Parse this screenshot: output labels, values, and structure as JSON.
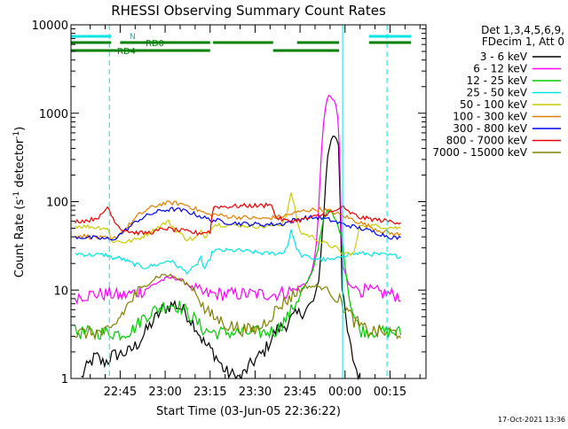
{
  "chart_data": {
    "type": "line",
    "title": "RHESSI Observing Summary Count Rates",
    "xlabel": "Start Time (03-Jun-05 22:36:22)",
    "ylabel_main": "Count Rate (s",
    "ylabel_exp1": "-1",
    "ylabel_mid": " detector",
    "ylabel_exp2": "-1",
    "ylabel_end": ")",
    "y_scale": "log",
    "ylim": [
      1,
      10000
    ],
    "xlim_minutes": [
      -16.4,
      102.0
    ],
    "x_reference": "22:36:22",
    "yticks": [
      {
        "v": 1,
        "label": "1"
      },
      {
        "v": 10,
        "label": "10"
      },
      {
        "v": 100,
        "label": "100"
      },
      {
        "v": 1000,
        "label": "1000"
      },
      {
        "v": 10000,
        "label": "10000"
      }
    ],
    "xticks": [
      {
        "m": 0,
        "label": "22:45"
      },
      {
        "m": 15,
        "label": "23:00"
      },
      {
        "m": 30,
        "label": "23:15"
      },
      {
        "m": 45,
        "label": "23:30"
      },
      {
        "m": 60,
        "label": "23:45"
      },
      {
        "m": 75,
        "label": "00:00"
      },
      {
        "m": 90,
        "label": "00:15"
      }
    ],
    "legend_header": [
      "Det 1,3,4,5,6,9,",
      "FDecim 1, Att 0"
    ],
    "legend_placement": "right",
    "series": [
      {
        "name": "3 - 6 keV",
        "color": "#000000",
        "points": [
          [
            -13,
            1
          ],
          [
            -12,
            1.2
          ],
          [
            -10,
            1.5
          ],
          [
            -8,
            1.8
          ],
          [
            -6,
            1.5
          ],
          [
            -4,
            1.6
          ],
          [
            -3,
            1.8
          ],
          [
            3,
            2
          ],
          [
            6,
            2.5
          ],
          [
            10,
            4
          ],
          [
            14,
            6
          ],
          [
            18,
            7
          ],
          [
            21,
            6
          ],
          [
            25,
            4
          ],
          [
            28,
            2.5
          ],
          [
            31,
            2
          ],
          [
            35,
            1.2
          ],
          [
            40,
            1
          ],
          [
            44,
            1.5
          ],
          [
            48,
            2
          ],
          [
            52,
            3.5
          ],
          [
            55,
            4
          ],
          [
            58,
            5
          ],
          [
            62,
            6
          ],
          [
            64,
            7
          ],
          [
            66,
            10
          ],
          [
            68,
            80
          ],
          [
            69,
            300
          ],
          [
            70,
            450
          ],
          [
            71,
            560
          ],
          [
            72,
            550
          ],
          [
            73,
            420
          ],
          [
            74,
            10
          ],
          [
            76,
            3
          ],
          [
            78,
            1.5
          ],
          [
            80,
            1
          ]
        ]
      },
      {
        "name": "6 - 12 keV",
        "color": "#ff00ff",
        "points": [
          [
            -15,
            8.5
          ],
          [
            -8,
            9
          ],
          [
            -4,
            9
          ],
          [
            -3,
            9
          ],
          [
            0,
            8.5
          ],
          [
            3,
            9
          ],
          [
            8,
            10
          ],
          [
            14,
            13
          ],
          [
            18,
            14
          ],
          [
            22,
            12
          ],
          [
            25,
            10
          ],
          [
            28,
            9
          ],
          [
            31,
            9
          ],
          [
            35,
            9
          ],
          [
            40,
            9
          ],
          [
            45,
            9
          ],
          [
            52,
            9
          ],
          [
            58,
            10
          ],
          [
            62,
            12
          ],
          [
            64,
            16
          ],
          [
            65,
            25
          ],
          [
            66,
            60
          ],
          [
            67,
            300
          ],
          [
            68,
            1000
          ],
          [
            69,
            1400
          ],
          [
            70,
            1600
          ],
          [
            71,
            1400
          ],
          [
            72,
            1200
          ],
          [
            73,
            700
          ],
          [
            74,
            20
          ],
          [
            76,
            12
          ],
          [
            80,
            10
          ],
          [
            90,
            9
          ],
          [
            94,
            8.5
          ]
        ]
      },
      {
        "name": "12 - 25 keV",
        "color": "#00cc00",
        "points": [
          [
            -15,
            3.3
          ],
          [
            -8,
            3.3
          ],
          [
            -4,
            3.3
          ],
          [
            -3,
            3.3
          ],
          [
            0,
            3.2
          ],
          [
            4,
            3.5
          ],
          [
            8,
            5
          ],
          [
            12,
            6
          ],
          [
            16,
            7
          ],
          [
            20,
            6.5
          ],
          [
            24,
            5
          ],
          [
            28,
            3.5
          ],
          [
            32,
            3.3
          ],
          [
            36,
            3.3
          ],
          [
            40,
            3.3
          ],
          [
            44,
            3.3
          ],
          [
            48,
            3.3
          ],
          [
            52,
            3.5
          ],
          [
            56,
            5
          ],
          [
            60,
            9
          ],
          [
            64,
            15
          ],
          [
            66,
            30
          ],
          [
            68,
            70
          ],
          [
            70,
            80
          ],
          [
            72,
            60
          ],
          [
            74,
            40
          ],
          [
            76,
            10
          ],
          [
            78,
            5
          ],
          [
            80,
            3.5
          ],
          [
            94,
            3.3
          ]
        ]
      },
      {
        "name": "25 - 50 keV",
        "color": "#00e5e5",
        "points": [
          [
            -15,
            26
          ],
          [
            -10,
            25
          ],
          [
            -4,
            25
          ],
          [
            -3,
            23
          ],
          [
            0,
            23
          ],
          [
            4,
            20
          ],
          [
            8,
            18
          ],
          [
            14,
            20
          ],
          [
            16,
            22
          ],
          [
            18,
            20
          ],
          [
            22,
            16
          ],
          [
            25,
            18
          ],
          [
            27,
            24
          ],
          [
            28,
            16
          ],
          [
            31,
            28
          ],
          [
            40,
            28
          ],
          [
            48,
            26
          ],
          [
            54,
            26
          ],
          [
            56,
            32
          ],
          [
            57,
            50
          ],
          [
            58,
            35
          ],
          [
            60,
            25
          ],
          [
            64,
            23
          ],
          [
            68,
            22
          ],
          [
            72,
            22
          ],
          [
            74,
            25
          ],
          [
            80,
            26
          ],
          [
            88,
            25
          ],
          [
            94,
            24
          ]
        ]
      },
      {
        "name": "50 - 100 keV",
        "color": "#cccc00",
        "points": [
          [
            -15,
            53
          ],
          [
            -10,
            52
          ],
          [
            -4,
            50
          ],
          [
            -3,
            36
          ],
          [
            2,
            35
          ],
          [
            6,
            38
          ],
          [
            10,
            45
          ],
          [
            14,
            55
          ],
          [
            16,
            60
          ],
          [
            18,
            50
          ],
          [
            22,
            38
          ],
          [
            25,
            38
          ],
          [
            27,
            46
          ],
          [
            28,
            38
          ],
          [
            31,
            55
          ],
          [
            40,
            54
          ],
          [
            48,
            52
          ],
          [
            54,
            56
          ],
          [
            56,
            80
          ],
          [
            57,
            130
          ],
          [
            58,
            90
          ],
          [
            60,
            45
          ],
          [
            64,
            40
          ],
          [
            68,
            34
          ],
          [
            72,
            30
          ],
          [
            74,
            26
          ],
          [
            78,
            26
          ],
          [
            80,
            55
          ],
          [
            88,
            52
          ],
          [
            94,
            50
          ]
        ]
      },
      {
        "name": "100 - 300 keV",
        "color": "#e08000",
        "points": [
          [
            -15,
            42
          ],
          [
            -10,
            40
          ],
          [
            -4,
            38
          ],
          [
            -3,
            36
          ],
          [
            2,
            50
          ],
          [
            6,
            70
          ],
          [
            10,
            85
          ],
          [
            14,
            95
          ],
          [
            18,
            97
          ],
          [
            22,
            92
          ],
          [
            26,
            80
          ],
          [
            30,
            70
          ],
          [
            31,
            72
          ],
          [
            36,
            68
          ],
          [
            42,
            66
          ],
          [
            48,
            64
          ],
          [
            54,
            68
          ],
          [
            58,
            74
          ],
          [
            62,
            80
          ],
          [
            66,
            82
          ],
          [
            70,
            78
          ],
          [
            74,
            70
          ],
          [
            80,
            58
          ],
          [
            86,
            48
          ],
          [
            90,
            44
          ],
          [
            94,
            42
          ]
        ]
      },
      {
        "name": "300 - 800 keV",
        "color": "#0000ee",
        "points": [
          [
            -15,
            40
          ],
          [
            -10,
            39
          ],
          [
            -4,
            38
          ],
          [
            -3,
            36
          ],
          [
            2,
            48
          ],
          [
            6,
            62
          ],
          [
            10,
            72
          ],
          [
            14,
            80
          ],
          [
            18,
            82
          ],
          [
            22,
            78
          ],
          [
            26,
            70
          ],
          [
            30,
            62
          ],
          [
            31,
            62
          ],
          [
            36,
            58
          ],
          [
            42,
            56
          ],
          [
            48,
            55
          ],
          [
            54,
            56
          ],
          [
            58,
            62
          ],
          [
            62,
            66
          ],
          [
            66,
            66
          ],
          [
            70,
            62
          ],
          [
            74,
            56
          ],
          [
            80,
            50
          ],
          [
            86,
            44
          ],
          [
            90,
            40
          ],
          [
            94,
            38
          ]
        ]
      },
      {
        "name": "800 - 7000 keV",
        "color": "#ee0000",
        "points": [
          [
            -15,
            60
          ],
          [
            -10,
            62
          ],
          [
            -6,
            70
          ],
          [
            -4,
            90
          ],
          [
            -3,
            70
          ],
          [
            0,
            50
          ],
          [
            4,
            45
          ],
          [
            8,
            44
          ],
          [
            12,
            46
          ],
          [
            15,
            50
          ],
          [
            18,
            48
          ],
          [
            22,
            46
          ],
          [
            26,
            44
          ],
          [
            30,
            46
          ],
          [
            31,
            88
          ],
          [
            36,
            88
          ],
          [
            42,
            90
          ],
          [
            48,
            90
          ],
          [
            50,
            98
          ],
          [
            52,
            66
          ],
          [
            56,
            60
          ],
          [
            60,
            62
          ],
          [
            64,
            66
          ],
          [
            68,
            72
          ],
          [
            72,
            78
          ],
          [
            74,
            90
          ],
          [
            75,
            80
          ],
          [
            80,
            66
          ],
          [
            86,
            62
          ],
          [
            90,
            60
          ],
          [
            94,
            58
          ]
        ]
      },
      {
        "name": "7000 - 15000 keV",
        "color": "#808000",
        "points": [
          [
            -15,
            3.2
          ],
          [
            -10,
            3.3
          ],
          [
            -4,
            3.3
          ],
          [
            -3,
            3.5
          ],
          [
            0,
            5
          ],
          [
            4,
            8
          ],
          [
            8,
            11
          ],
          [
            12,
            14
          ],
          [
            15,
            15
          ],
          [
            18,
            14
          ],
          [
            22,
            12
          ],
          [
            26,
            9
          ],
          [
            28,
            6
          ],
          [
            31,
            5
          ],
          [
            36,
            4
          ],
          [
            42,
            3.5
          ],
          [
            46,
            3.6
          ],
          [
            50,
            5
          ],
          [
            54,
            7
          ],
          [
            58,
            9
          ],
          [
            62,
            11
          ],
          [
            66,
            11
          ],
          [
            70,
            10
          ],
          [
            74,
            7
          ],
          [
            78,
            4.5
          ],
          [
            82,
            3.5
          ],
          [
            88,
            3.3
          ],
          [
            94,
            3.3
          ]
        ]
      }
    ],
    "state_bars": [
      {
        "label": "N",
        "color": "#00e5e5",
        "level": 1,
        "segments": [
          [
            -16.4,
            -3
          ],
          [
            83,
            97
          ]
        ]
      },
      {
        "label": "RD0",
        "color": "#008000",
        "level": 2,
        "segments": [
          [
            -16.4,
            -3
          ],
          [
            0,
            30
          ],
          [
            31,
            51
          ],
          [
            59,
            73
          ],
          [
            83,
            97
          ]
        ]
      },
      {
        "label": "RD4",
        "color": "#008000",
        "level": 3,
        "segments": [
          [
            -16.4,
            30
          ],
          [
            51,
            73
          ]
        ]
      }
    ],
    "v_lines": [
      {
        "m": -16.4,
        "style": "solid"
      },
      {
        "m": -3.6,
        "style": "dashed"
      },
      {
        "m": 74.2,
        "style": "solid"
      },
      {
        "m": 89.0,
        "style": "dashed"
      }
    ],
    "timestamp": "17-Oct-2021 13:36"
  }
}
